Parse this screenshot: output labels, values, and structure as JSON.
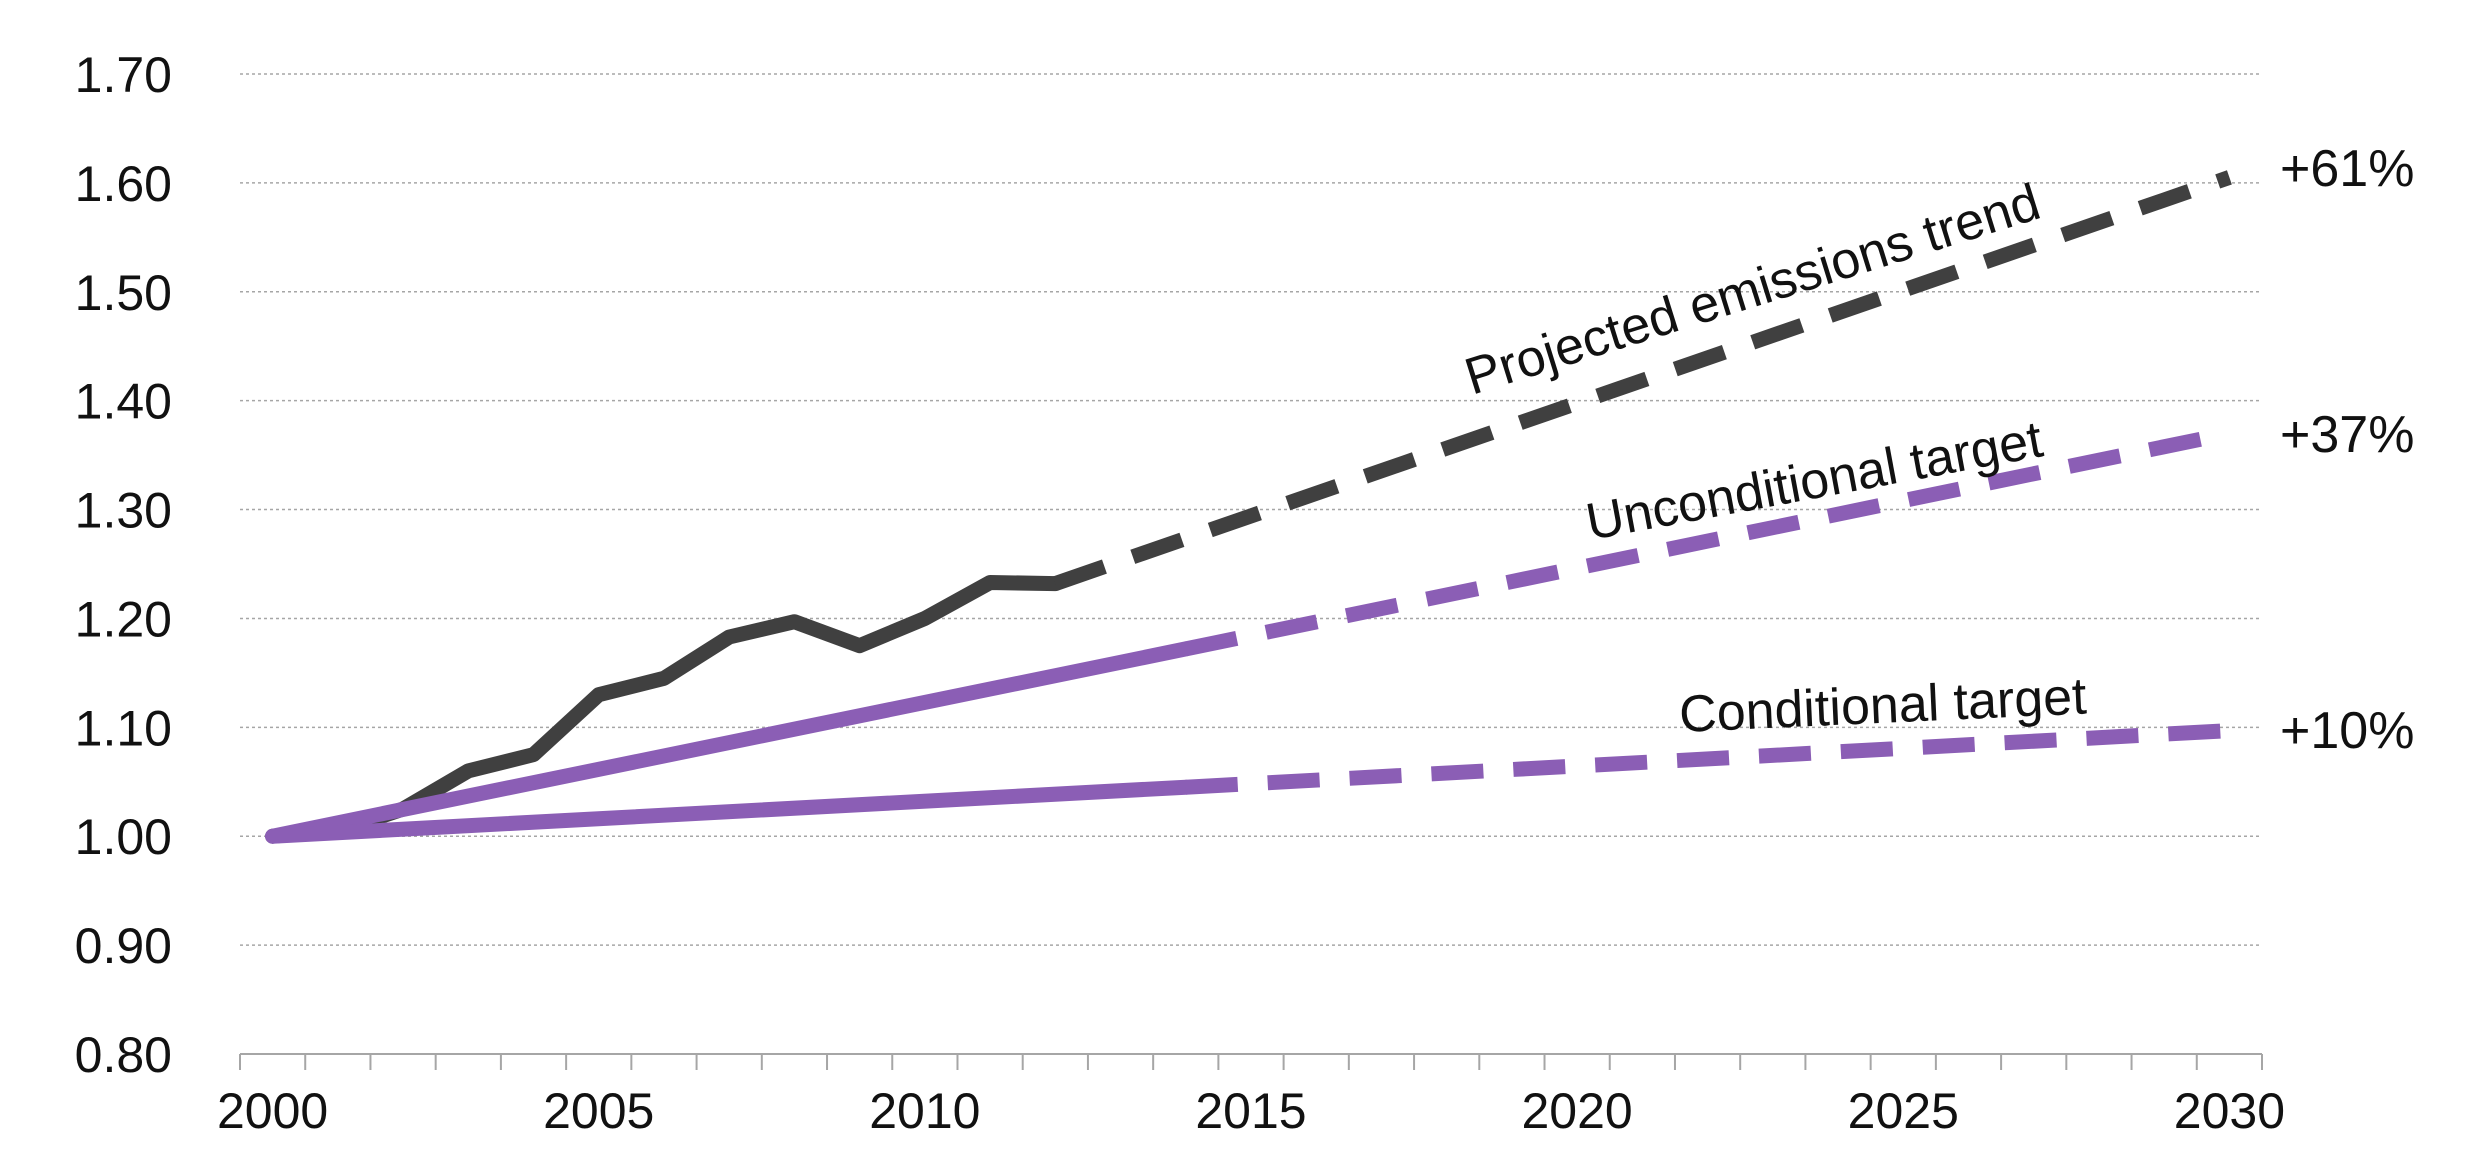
{
  "chart_data": {
    "type": "line",
    "title": "",
    "xlabel": "",
    "ylabel": "",
    "xlim": [
      2000,
      2030
    ],
    "ylim": [
      0.8,
      1.7
    ],
    "x_ticks": [
      "2000",
      "2005",
      "2010",
      "2015",
      "2020",
      "2025",
      "2030"
    ],
    "y_ticks": [
      "0.80",
      "0.90",
      "1.00",
      "1.10",
      "1.20",
      "1.30",
      "1.40",
      "1.50",
      "1.60",
      "1.70"
    ],
    "grid": "horizontal dotted",
    "series": [
      {
        "color": "#404040",
        "style": "solid",
        "x": [
          2000,
          2001,
          2002,
          2003,
          2004,
          2005,
          2006,
          2007,
          2008,
          2009,
          2010,
          2011,
          2012
        ],
        "values": [
          1.0,
          1.005,
          1.025,
          1.06,
          1.075,
          1.13,
          1.145,
          1.183,
          1.197,
          1.175,
          1.2,
          1.233,
          1.232
        ]
      },
      {
        "color": "#404040",
        "style": "dashed",
        "x": [
          2012,
          2030
        ],
        "values": [
          1.232,
          1.605
        ]
      },
      {
        "color": "#8b5eb5",
        "style": "solid",
        "x": [
          2000,
          2014
        ],
        "values": [
          1.0,
          1.172
        ]
      },
      {
        "color": "#8b5eb5",
        "style": "dashed",
        "x": [
          2014,
          2030
        ],
        "values": [
          1.172,
          1.37
        ]
      },
      {
        "color": "#8b5eb5",
        "style": "solid",
        "x": [
          2000,
          2014
        ],
        "values": [
          1.0,
          1.045
        ]
      },
      {
        "color": "#8b5eb5",
        "style": "dashed",
        "x": [
          2014,
          2030
        ],
        "values": [
          1.045,
          1.097
        ]
      }
    ],
    "annotations": [
      {
        "text": "Projected emissions trend"
      },
      {
        "text": "Unconditional target"
      },
      {
        "text": "Conditional target"
      }
    ],
    "end_labels": [
      {
        "text": "+61%"
      },
      {
        "text": "+37%"
      },
      {
        "text": "+10%"
      }
    ]
  }
}
